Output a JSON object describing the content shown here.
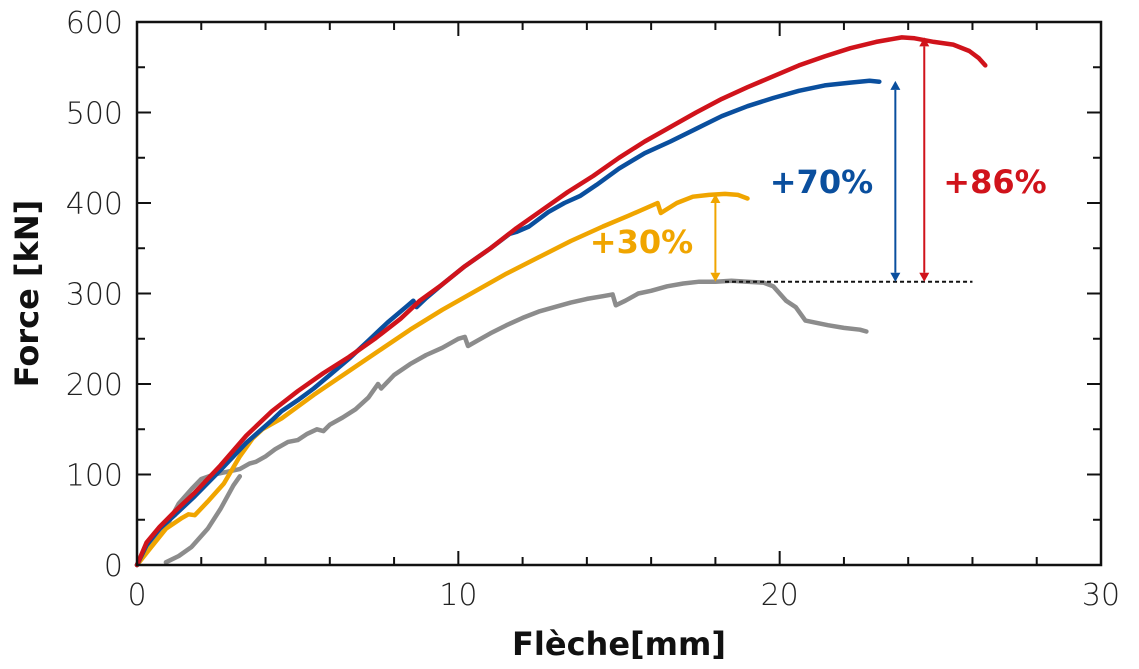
{
  "chart_data": {
    "type": "line",
    "xlabel": "Flèche[mm]",
    "ylabel": "Force [kN]",
    "xlim": [
      0,
      30
    ],
    "ylim": [
      0,
      600
    ],
    "xticks": [
      0,
      10,
      20,
      30
    ],
    "yticks": [
      0,
      100,
      200,
      300,
      400,
      500,
      600
    ],
    "grid": false,
    "series": [
      {
        "color": "#8c8c8c",
        "points": [
          [
            0,
            0
          ],
          [
            0.3,
            18
          ],
          [
            0.6,
            30
          ],
          [
            1.0,
            48
          ],
          [
            1.3,
            68
          ],
          [
            1.7,
            84
          ],
          [
            2.0,
            95
          ],
          [
            2.4,
            100
          ],
          [
            2.8,
            103
          ],
          [
            3.2,
            106
          ],
          [
            3.5,
            112
          ],
          [
            3.7,
            114
          ],
          [
            4.0,
            120
          ],
          [
            4.3,
            128
          ],
          [
            4.7,
            136
          ],
          [
            5.0,
            138
          ],
          [
            5.3,
            145
          ],
          [
            5.6,
            150
          ],
          [
            5.8,
            148
          ],
          [
            6.0,
            155
          ],
          [
            6.4,
            163
          ],
          [
            6.8,
            172
          ],
          [
            7.2,
            185
          ],
          [
            7.5,
            200
          ],
          [
            7.6,
            195
          ],
          [
            8.0,
            210
          ],
          [
            8.5,
            222
          ],
          [
            9.0,
            232
          ],
          [
            9.5,
            240
          ],
          [
            10.0,
            250
          ],
          [
            10.2,
            252
          ],
          [
            10.3,
            242
          ],
          [
            10.6,
            248
          ],
          [
            11.0,
            256
          ],
          [
            11.5,
            265
          ],
          [
            12.0,
            273
          ],
          [
            12.5,
            280
          ],
          [
            13.0,
            285
          ],
          [
            13.5,
            290
          ],
          [
            14.0,
            294
          ],
          [
            14.5,
            297
          ],
          [
            14.8,
            299
          ],
          [
            14.9,
            287
          ],
          [
            15.2,
            292
          ],
          [
            15.6,
            300
          ],
          [
            16.0,
            303
          ],
          [
            16.5,
            308
          ],
          [
            17.0,
            311
          ],
          [
            17.5,
            313
          ],
          [
            18.0,
            313
          ],
          [
            18.5,
            314
          ],
          [
            19.0,
            313
          ],
          [
            19.5,
            312
          ],
          [
            19.8,
            308
          ],
          [
            20.2,
            292
          ],
          [
            20.5,
            285
          ],
          [
            20.8,
            270
          ],
          [
            21.5,
            265
          ],
          [
            22.0,
            262
          ],
          [
            22.5,
            260
          ],
          [
            22.7,
            258
          ]
        ]
      },
      {
        "color": "#8c8c8c",
        "points": [
          [
            0.9,
            3
          ],
          [
            1.3,
            10
          ],
          [
            1.7,
            20
          ],
          [
            2.2,
            40
          ],
          [
            2.6,
            62
          ],
          [
            3.0,
            88
          ],
          [
            3.2,
            98
          ]
        ]
      },
      {
        "color": "#f0a500",
        "points": [
          [
            0,
            0
          ],
          [
            0.4,
            18
          ],
          [
            0.9,
            40
          ],
          [
            1.4,
            52
          ],
          [
            1.6,
            56
          ],
          [
            1.8,
            55
          ],
          [
            2.2,
            70
          ],
          [
            2.7,
            90
          ],
          [
            3.2,
            120
          ],
          [
            3.6,
            140
          ],
          [
            3.9,
            150
          ],
          [
            4.5,
            162
          ],
          [
            5.5,
            188
          ],
          [
            6.5,
            212
          ],
          [
            7.5,
            236
          ],
          [
            8.5,
            260
          ],
          [
            9.5,
            282
          ],
          [
            10.5,
            302
          ],
          [
            11.5,
            322
          ],
          [
            12.5,
            340
          ],
          [
            13.5,
            358
          ],
          [
            14.5,
            374
          ],
          [
            15.3,
            386
          ],
          [
            16.2,
            400
          ],
          [
            16.3,
            389
          ],
          [
            16.8,
            400
          ],
          [
            17.3,
            407
          ],
          [
            17.8,
            409
          ],
          [
            18.3,
            410
          ],
          [
            18.7,
            409
          ],
          [
            19.0,
            405
          ]
        ]
      },
      {
        "color": "#0a4f9e",
        "points": [
          [
            0,
            0
          ],
          [
            0.3,
            22
          ],
          [
            0.7,
            40
          ],
          [
            1.2,
            56
          ],
          [
            1.8,
            76
          ],
          [
            2.6,
            105
          ],
          [
            3.4,
            135
          ],
          [
            4.2,
            160
          ],
          [
            4.5,
            170
          ],
          [
            5.0,
            182
          ],
          [
            5.5,
            195
          ],
          [
            6.0,
            210
          ],
          [
            6.6,
            228
          ],
          [
            7.2,
            248
          ],
          [
            7.8,
            268
          ],
          [
            8.4,
            286
          ],
          [
            8.6,
            292
          ],
          [
            8.7,
            285
          ],
          [
            9.0,
            295
          ],
          [
            9.5,
            310
          ],
          [
            10.2,
            330
          ],
          [
            11.0,
            350
          ],
          [
            11.6,
            366
          ],
          [
            11.8,
            368
          ],
          [
            12.2,
            374
          ],
          [
            12.8,
            390
          ],
          [
            13.3,
            400
          ],
          [
            13.8,
            408
          ],
          [
            14.3,
            420
          ],
          [
            15.0,
            438
          ],
          [
            15.8,
            455
          ],
          [
            16.6,
            468
          ],
          [
            17.4,
            482
          ],
          [
            18.2,
            496
          ],
          [
            19.0,
            507
          ],
          [
            19.8,
            516
          ],
          [
            20.6,
            524
          ],
          [
            21.4,
            530
          ],
          [
            22.2,
            533
          ],
          [
            22.8,
            535
          ],
          [
            23.1,
            534
          ]
        ]
      },
      {
        "color": "#d0131b",
        "points": [
          [
            0,
            0
          ],
          [
            0.3,
            25
          ],
          [
            0.7,
            42
          ],
          [
            1.2,
            60
          ],
          [
            1.8,
            80
          ],
          [
            2.6,
            110
          ],
          [
            3.4,
            143
          ],
          [
            4.2,
            170
          ],
          [
            5.0,
            192
          ],
          [
            5.8,
            212
          ],
          [
            6.6,
            230
          ],
          [
            7.4,
            250
          ],
          [
            8.2,
            272
          ],
          [
            8.8,
            292
          ],
          [
            9.5,
            310
          ],
          [
            10.2,
            330
          ],
          [
            11.0,
            350
          ],
          [
            11.8,
            372
          ],
          [
            12.6,
            392
          ],
          [
            13.4,
            412
          ],
          [
            14.2,
            430
          ],
          [
            15.0,
            450
          ],
          [
            15.8,
            468
          ],
          [
            16.6,
            484
          ],
          [
            17.4,
            500
          ],
          [
            18.2,
            515
          ],
          [
            19.0,
            528
          ],
          [
            19.8,
            540
          ],
          [
            20.6,
            552
          ],
          [
            21.4,
            562
          ],
          [
            22.2,
            571
          ],
          [
            23.0,
            578
          ],
          [
            23.8,
            583
          ],
          [
            24.2,
            582
          ],
          [
            24.8,
            578
          ],
          [
            25.4,
            575
          ],
          [
            25.9,
            568
          ],
          [
            26.2,
            560
          ],
          [
            26.4,
            552
          ]
        ]
      }
    ],
    "reference_line": {
      "y": 313,
      "x_from": 18.3,
      "x_to": 26.0,
      "style": "dotted",
      "color": "#111111"
    },
    "annotations": [
      {
        "text": "+30%",
        "color": "#f0a500",
        "arrow_x": 18.0,
        "y_from": 313,
        "y_to": 410,
        "label_x": 15.7,
        "label_y": 357
      },
      {
        "text": "+70%",
        "color": "#0a4f9e",
        "arrow_x": 23.6,
        "y_from": 313,
        "y_to": 535,
        "label_x": 21.3,
        "label_y": 423
      },
      {
        "text": "+86%",
        "color": "#d0131b",
        "arrow_x": 24.5,
        "y_from": 313,
        "y_to": 583,
        "label_x": 26.7,
        "label_y": 423
      }
    ]
  }
}
